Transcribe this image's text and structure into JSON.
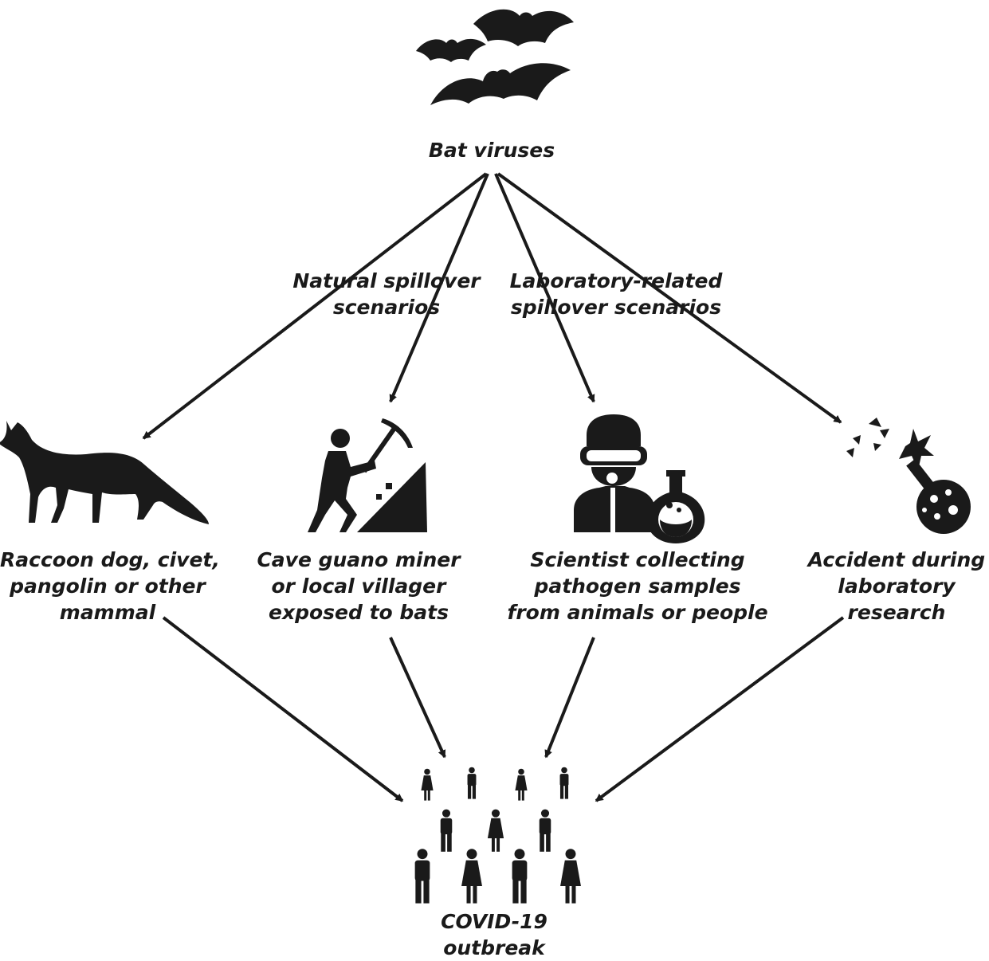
{
  "source": {
    "label": "Bat viruses",
    "icon": "bats-icon"
  },
  "branches": {
    "natural": [
      "Natural spillover",
      "scenarios"
    ],
    "laboratory": [
      "Laboratory-related",
      "spillover scenarios"
    ]
  },
  "scenarios": [
    {
      "id": "mammal",
      "icon": "fox-icon",
      "lines": [
        "Raccoon dog, civet,",
        "pangolin or other",
        "mammal"
      ]
    },
    {
      "id": "miner",
      "icon": "miner-icon",
      "lines": [
        "Cave guano miner",
        "or local villager",
        "exposed to bats"
      ]
    },
    {
      "id": "scientist",
      "icon": "scientist-icon",
      "lines": [
        "Scientist collecting",
        "pathogen samples",
        "from animals or people"
      ]
    },
    {
      "id": "accident",
      "icon": "broken-flask-icon",
      "lines": [
        "Accident during",
        "laboratory",
        "research"
      ]
    }
  ],
  "outcome": {
    "icon": "crowd-icon",
    "lines": [
      "COVID-19",
      "outbreak"
    ]
  },
  "colors": {
    "ink": "#1a1a1a",
    "background": "#ffffff"
  }
}
